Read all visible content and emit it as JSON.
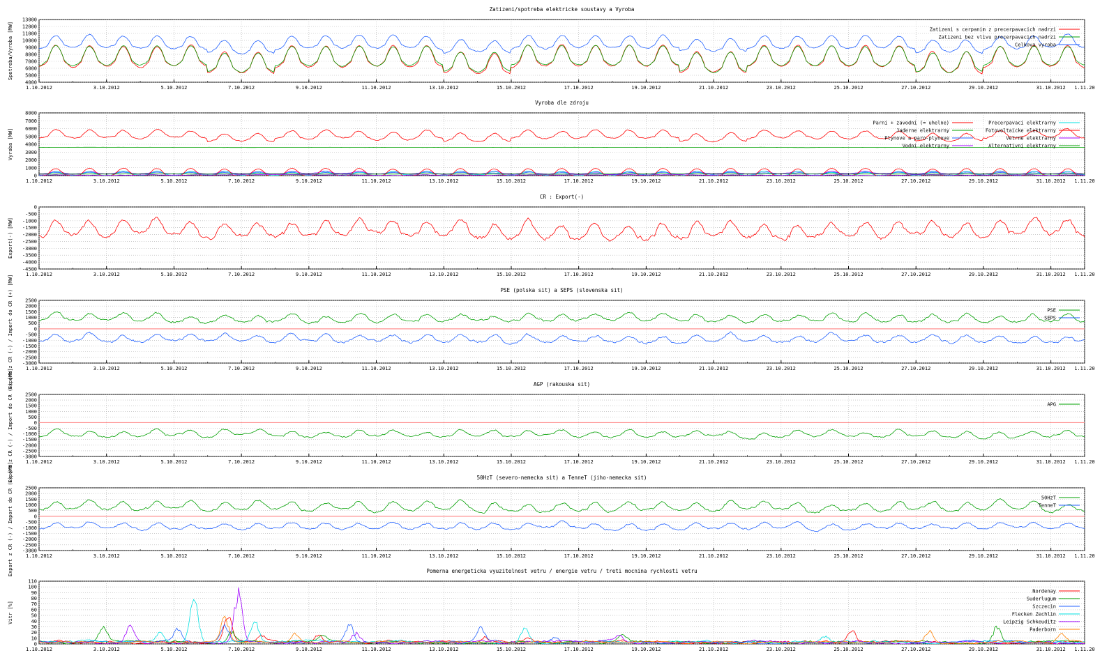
{
  "colors": {
    "red": "#ff0000",
    "green": "#00a000",
    "blue": "#2060ff",
    "cyan": "#00e0e0",
    "purple": "#a000ff",
    "orange": "#ff8000",
    "pink": "#ff40c0",
    "grid": "#b0b0b0",
    "refline": "#ff9090"
  },
  "x_labels": [
    "1.10.2012",
    "3.10.2012",
    "5.10.2012",
    "7.10.2012",
    "9.10.2012",
    "11.10.2012",
    "13.10.2012",
    "15.10.2012",
    "17.10.2012",
    "19.10.2012",
    "21.10.2012",
    "23.10.2012",
    "25.10.2012",
    "27.10.2012",
    "29.10.2012",
    "31.10.2012",
    "1.11.20"
  ],
  "chart_data": [
    {
      "type": "line",
      "title": "Zatizeni/spotreba elektricke soustavy a Vyroba",
      "ylabel": "Spotreba/Vyroba [MW]",
      "ylim": [
        4000,
        13000
      ],
      "yticks": [
        4000,
        5000,
        6000,
        7000,
        8000,
        9000,
        10000,
        11000,
        12000,
        13000
      ],
      "x_range_days": [
        0,
        31
      ],
      "legend_position": "top-right",
      "series": [
        {
          "name": "Zatizeni s cerpanim z precerpavacich nadrzi",
          "color": "red",
          "base": 7000,
          "daily_amp": 1500,
          "weekly_dip": 900,
          "noise": 200
        },
        {
          "name": "Zatizeni bez vlivu precerpavacich nadrzi",
          "color": "green",
          "base": 7100,
          "daily_amp": 1400,
          "weekly_dip": 900,
          "noise": 150
        },
        {
          "name": "Celkova vyroba",
          "color": "blue",
          "base": 9300,
          "daily_amp": 900,
          "weekly_dip": 500,
          "noise": 250
        }
      ]
    },
    {
      "type": "line",
      "title": "Vyroba dle zdroju",
      "ylabel": "Vyroba [MW]",
      "ylim": [
        0,
        8000
      ],
      "yticks": [
        0,
        1000,
        2000,
        3000,
        4000,
        5000,
        6000,
        7000,
        8000
      ],
      "x_range_days": [
        0,
        31
      ],
      "legend_position": "top-right",
      "legend_columns": 2,
      "series": [
        {
          "name": "Parni + zavodni (= uhelne)",
          "color": "red",
          "base": 5000,
          "daily_amp": 500,
          "weekly_dip": 400,
          "noise": 200
        },
        {
          "name": "Jaderne elektrarny",
          "color": "green",
          "base": 3600,
          "daily_amp": 0,
          "weekly_dip": 0,
          "noise": 20
        },
        {
          "name": "Plynove a paro-plynove",
          "color": "blue",
          "base": 250,
          "daily_amp": 100,
          "weekly_dip": 0,
          "noise": 60
        },
        {
          "name": "Vodni elektrarny",
          "color": "purple",
          "base": 300,
          "daily_amp": 150,
          "weekly_dip": 0,
          "noise": 60
        },
        {
          "name": "Precerpavaci elektrarny",
          "color": "cyan",
          "base": 150,
          "daily_amp": 250,
          "weekly_dip": 0,
          "noise": 80
        },
        {
          "name": "Fotovoltaicke elektrarny",
          "color": "red",
          "base": 150,
          "daily_amp": 500,
          "weekly_dip": 0,
          "noise": 80
        },
        {
          "name": "Vetrne elektrarny",
          "color": "purple",
          "base": 80,
          "daily_amp": 0,
          "weekly_dip": 0,
          "noise": 60
        },
        {
          "name": "Alternativni elektrarny",
          "color": "green",
          "base": 200,
          "daily_amp": 0,
          "weekly_dip": 0,
          "noise": 20
        }
      ]
    },
    {
      "type": "line",
      "title": "CR : Export(-)",
      "ylabel": "Export(-) [MW]",
      "ylim": [
        -4500,
        0
      ],
      "yticks": [
        -4500,
        -4000,
        -3500,
        -3000,
        -2500,
        -2000,
        -1500,
        -1000,
        -500,
        0
      ],
      "x_range_days": [
        0,
        31
      ],
      "series": [
        {
          "name": "",
          "color": "red",
          "base": -1900,
          "daily_amp": 500,
          "weekly_dip": 0,
          "noise": 350
        }
      ]
    },
    {
      "type": "line",
      "title": "PSE (polska sit) a SEPS (slovenska sit)",
      "ylabel": "Export z CR (-) / Import do CR (+) [MW]",
      "ylim": [
        -3000,
        2500
      ],
      "yticks": [
        -3000,
        -2500,
        -2000,
        -1500,
        -1000,
        -500,
        0,
        500,
        1000,
        1500,
        2000,
        2500
      ],
      "x_range_days": [
        0,
        31
      ],
      "legend_position": "right",
      "zero_line": true,
      "series": [
        {
          "name": "PSE",
          "color": "green",
          "base": 800,
          "daily_amp": 300,
          "weekly_dip": 0,
          "noise": 250
        },
        {
          "name": "SEPS",
          "color": "blue",
          "base": -1000,
          "daily_amp": 300,
          "weekly_dip": 0,
          "noise": 250
        }
      ]
    },
    {
      "type": "line",
      "title": "AGP (rakouska sit)",
      "ylabel": "Export z CR (-) / Import do CR (+) [MW]",
      "ylim": [
        -3000,
        2500
      ],
      "yticks": [
        -3000,
        -2500,
        -2000,
        -1500,
        -1000,
        -500,
        0,
        500,
        1000,
        1500,
        2000,
        2500
      ],
      "x_range_days": [
        0,
        31
      ],
      "legend_position": "right",
      "zero_line": true,
      "series": [
        {
          "name": "APG",
          "color": "green",
          "base": -1100,
          "daily_amp": 250,
          "weekly_dip": 0,
          "noise": 200
        }
      ]
    },
    {
      "type": "line",
      "title": "50HzT (severo-nemecka sit) a TenneT (jiho-nemecka sit)",
      "ylabel": "Export z CR (-) / Import do CR (+) [MW]",
      "ylim": [
        -3000,
        2500
      ],
      "yticks": [
        -3000,
        -2500,
        -2000,
        -1500,
        -1000,
        -500,
        0,
        500,
        1000,
        1500,
        2000,
        2500
      ],
      "x_range_days": [
        0,
        31
      ],
      "legend_position": "right",
      "zero_line": true,
      "series": [
        {
          "name": "50HzT",
          "color": "green",
          "base": 700,
          "daily_amp": 350,
          "weekly_dip": 0,
          "noise": 250
        },
        {
          "name": "TenneT",
          "color": "blue",
          "base": -1000,
          "daily_amp": 250,
          "weekly_dip": 0,
          "noise": 200
        }
      ]
    },
    {
      "type": "line",
      "title": "Pomerna energeticka vyuzitelnost vetru / energie vetru / treti mocnina rychlosti vetru",
      "ylabel": "Vitr [%]",
      "ylim": [
        0,
        110
      ],
      "yticks": [
        0,
        10,
        20,
        30,
        40,
        50,
        60,
        70,
        80,
        90,
        100,
        110
      ],
      "x_range_days": [
        0,
        31
      ],
      "legend_position": "top-right",
      "series": [
        {
          "name": "Nordenay",
          "color": "red",
          "base": 3,
          "daily_amp": 0,
          "weekly_dip": 0,
          "noise": 4,
          "spikes": [
            [
              5.6,
              55
            ],
            [
              6.6,
              12
            ],
            [
              8.3,
              15
            ],
            [
              13.2,
              10
            ],
            [
              14.5,
              8
            ],
            [
              24.1,
              20
            ]
          ]
        },
        {
          "name": "Suderlugum",
          "color": "green",
          "base": 3,
          "daily_amp": 0,
          "weekly_dip": 0,
          "noise": 4,
          "spikes": [
            [
              1.9,
              28
            ],
            [
              5.7,
              20
            ],
            [
              8.4,
              10
            ],
            [
              17.3,
              12
            ],
            [
              28.4,
              30
            ]
          ]
        },
        {
          "name": "Szczecin",
          "color": "blue",
          "base": 3,
          "daily_amp": 0,
          "weekly_dip": 0,
          "noise": 3,
          "spikes": [
            [
              4.1,
              25
            ],
            [
              5.5,
              30
            ],
            [
              9.2,
              40
            ],
            [
              13.1,
              25
            ],
            [
              15.3,
              12
            ]
          ]
        },
        {
          "name": "Flecken Zechlin",
          "color": "cyan",
          "base": 3,
          "daily_amp": 0,
          "weekly_dip": 0,
          "noise": 4,
          "spikes": [
            [
              3.6,
              20
            ],
            [
              4.6,
              90
            ],
            [
              6.4,
              40
            ],
            [
              14.4,
              28
            ],
            [
              23.3,
              15
            ]
          ]
        },
        {
          "name": "Leipzig Schkeuditz",
          "color": "purple",
          "base": 3,
          "daily_amp": 0,
          "weekly_dip": 0,
          "noise": 4,
          "spikes": [
            [
              5.9,
              100
            ],
            [
              2.7,
              35
            ],
            [
              9.4,
              20
            ],
            [
              17.2,
              15
            ],
            [
              31.2,
              12
            ]
          ]
        },
        {
          "name": "Paderborn",
          "color": "orange",
          "base": 3,
          "daily_amp": 0,
          "weekly_dip": 0,
          "noise": 3,
          "spikes": [
            [
              5.5,
              50
            ],
            [
              7.6,
              18
            ],
            [
              26.4,
              22
            ],
            [
              30.3,
              15
            ]
          ]
        }
      ]
    }
  ]
}
